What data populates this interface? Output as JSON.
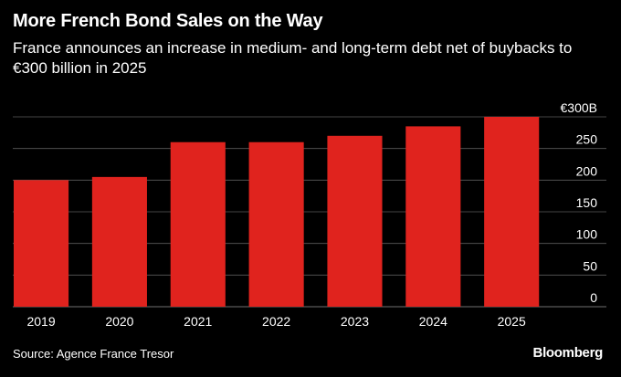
{
  "header": {
    "title": "More French Bond Sales on the Way",
    "subtitle": "France announces an increase in medium- and long-term debt net of buybacks to €300 billion in 2025"
  },
  "footer": {
    "source": "Source: Agence France Tresor",
    "brand": "Bloomberg"
  },
  "colors": {
    "background": "#000000",
    "bar": "#e0231e",
    "grid": "#5a5a5a",
    "text": "#ffffff"
  },
  "chart_data": {
    "type": "bar",
    "categories": [
      "2019",
      "2020",
      "2021",
      "2022",
      "2023",
      "2024",
      "2025"
    ],
    "values": [
      200,
      205,
      260,
      260,
      270,
      285,
      300
    ],
    "ylim": [
      0,
      300
    ],
    "yticks": [
      0,
      50,
      100,
      150,
      200,
      250,
      300
    ],
    "ytick_labels": [
      "0",
      "50",
      "100",
      "150",
      "200",
      "250",
      "€300B"
    ],
    "grid": true,
    "y_axis_position": "right"
  }
}
